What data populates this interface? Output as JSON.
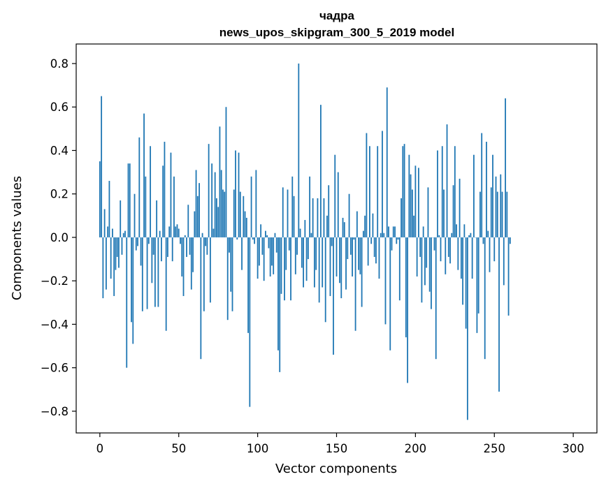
{
  "chart_data": {
    "type": "bar",
    "title_line1": "чадра",
    "title_line2": "news_upos_skipgram_300_5_2019 model",
    "xlabel": "Vector components",
    "ylabel": "Components values",
    "xlim": [
      -15,
      315
    ],
    "ylim": [
      -0.9,
      0.89
    ],
    "x_ticks": [
      0,
      50,
      100,
      150,
      200,
      250,
      300
    ],
    "x_tick_labels": [
      "0",
      "50",
      "100",
      "150",
      "200",
      "250",
      "300"
    ],
    "y_ticks": [
      -0.8,
      -0.6,
      -0.4,
      -0.2,
      0.0,
      0.2,
      0.4,
      0.6,
      0.8
    ],
    "y_tick_labels": [
      "−0.8",
      "−0.6",
      "−0.4",
      "−0.2",
      "0.0",
      "0.2",
      "0.4",
      "0.6",
      "0.8"
    ],
    "bar_color": "#1f77b4",
    "values": [
      0.35,
      0.65,
      -0.28,
      0.13,
      -0.24,
      0.05,
      0.26,
      -0.19,
      0.04,
      -0.27,
      -0.15,
      -0.09,
      -0.14,
      0.17,
      -0.08,
      0.02,
      0.03,
      -0.6,
      0.34,
      0.34,
      -0.39,
      -0.49,
      0.2,
      -0.06,
      -0.04,
      0.46,
      -0.13,
      -0.34,
      0.57,
      0.28,
      -0.33,
      -0.03,
      0.42,
      -0.21,
      -0.08,
      -0.32,
      0.17,
      -0.32,
      0.03,
      -0.11,
      0.33,
      0.44,
      -0.43,
      -0.09,
      0.05,
      0.39,
      -0.11,
      0.28,
      0.05,
      0.06,
      0.04,
      -0.03,
      -0.18,
      -0.27,
      0.01,
      -0.09,
      0.15,
      -0.08,
      -0.24,
      -0.16,
      0.12,
      0.31,
      0.19,
      0.25,
      -0.56,
      0.02,
      -0.34,
      -0.04,
      -0.08,
      0.43,
      -0.3,
      0.34,
      0.04,
      0.3,
      0.18,
      0.14,
      0.51,
      0.31,
      0.22,
      0.21,
      0.6,
      -0.38,
      -0.07,
      -0.25,
      -0.34,
      0.22,
      0.4,
      -0.01,
      0.39,
      0.21,
      -0.15,
      0.19,
      0.12,
      0.09,
      -0.44,
      -0.78,
      0.28,
      -0.01,
      -0.03,
      0.31,
      -0.19,
      -0.13,
      0.06,
      -0.08,
      -0.2,
      0.03,
      0.01,
      -0.05,
      -0.18,
      -0.13,
      -0.17,
      0.02,
      -0.07,
      -0.52,
      -0.62,
      -0.26,
      0.23,
      -0.29,
      -0.15,
      0.22,
      -0.06,
      -0.29,
      0.28,
      0.19,
      -0.17,
      -0.08,
      0.8,
      0.04,
      -0.14,
      -0.23,
      0.08,
      -0.2,
      -0.1,
      0.28,
      0.02,
      0.18,
      -0.23,
      -0.15,
      0.18,
      -0.3,
      0.61,
      -0.23,
      0.18,
      -0.39,
      0.1,
      0.24,
      -0.27,
      -0.04,
      -0.54,
      0.38,
      -0.18,
      0.3,
      -0.21,
      -0.28,
      0.09,
      0.07,
      -0.24,
      -0.1,
      0.2,
      -0.08,
      -0.18,
      -0.01,
      -0.43,
      0.12,
      -0.15,
      -0.17,
      -0.32,
      0.03,
      0.1,
      0.48,
      -0.13,
      0.42,
      -0.03,
      0.11,
      -0.09,
      -0.12,
      0.42,
      -0.19,
      0.02,
      0.49,
      0.02,
      -0.4,
      0.69,
      0.05,
      -0.52,
      -0.06,
      0.05,
      0.05,
      -0.03,
      -0.01,
      -0.29,
      0.18,
      0.42,
      0.43,
      -0.46,
      -0.67,
      0.38,
      0.29,
      0.22,
      0.1,
      0.33,
      -0.18,
      0.32,
      -0.09,
      -0.3,
      0.05,
      -0.22,
      -0.14,
      0.23,
      -0.25,
      -0.33,
      0.0,
      -0.06,
      -0.56,
      0.4,
      0.01,
      -0.11,
      0.42,
      0.22,
      -0.17,
      0.52,
      -0.09,
      -0.12,
      0.02,
      0.24,
      0.42,
      0.06,
      -0.15,
      0.27,
      -0.19,
      -0.31,
      0.06,
      -0.42,
      -0.84,
      0.01,
      0.02,
      -0.19,
      0.38,
      0.0,
      -0.44,
      -0.35,
      0.21,
      0.48,
      -0.03,
      -0.56,
      0.44,
      0.03,
      -0.16,
      0.23,
      0.38,
      -0.11,
      0.28,
      0.21,
      -0.71,
      0.29,
      0.21,
      -0.22,
      0.64,
      0.21,
      -0.36,
      -0.03
    ]
  }
}
